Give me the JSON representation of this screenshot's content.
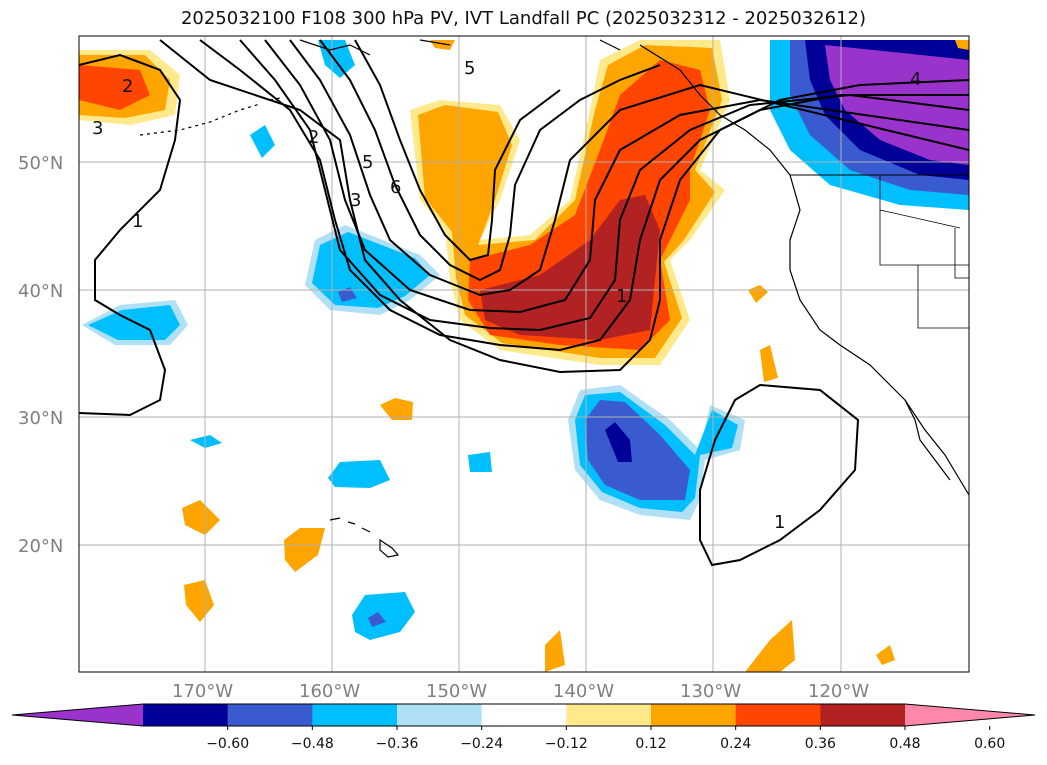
{
  "title": "2025032100 F108 300 hPa PV, IVT Landfall PC (2025032312 - 2025032612)",
  "latitude_labels": [
    "50°N",
    "40°N",
    "30°N",
    "20°N"
  ],
  "longitude_labels": [
    "170°W",
    "160°W",
    "150°W",
    "140°W",
    "130°W",
    "120°W"
  ],
  "colorbar": {
    "ticks": [
      "−0.60",
      "−0.48",
      "−0.36",
      "−0.24",
      "−0.12",
      "0.12",
      "0.24",
      "0.36",
      "0.48",
      "0.60"
    ],
    "colors": [
      "#9933cc",
      "#000099",
      "#3a5bcf",
      "#00bfff",
      "#b0e0f5",
      "#ffffff",
      "#ffe98a",
      "#ffa500",
      "#ff4500",
      "#b22222",
      "#ff88aa"
    ]
  },
  "pv_contour_labels": [
    "2",
    "3",
    "1",
    "2",
    "5",
    "3",
    "6",
    "5",
    "4",
    "1",
    "1"
  ],
  "chart_data": {
    "type": "heatmap",
    "field_shaded": "IVT Landfall PC",
    "field_contoured": "300 hPa PV",
    "lat_range": [
      10,
      60
    ],
    "lon_range": [
      -180,
      -110
    ],
    "color_levels": [
      -0.6,
      -0.48,
      -0.36,
      -0.24,
      -0.12,
      0.12,
      0.24,
      0.36,
      0.48,
      0.6
    ],
    "pv_contour_levels": [
      1,
      2,
      3,
      4,
      5,
      6
    ],
    "grid": true
  }
}
